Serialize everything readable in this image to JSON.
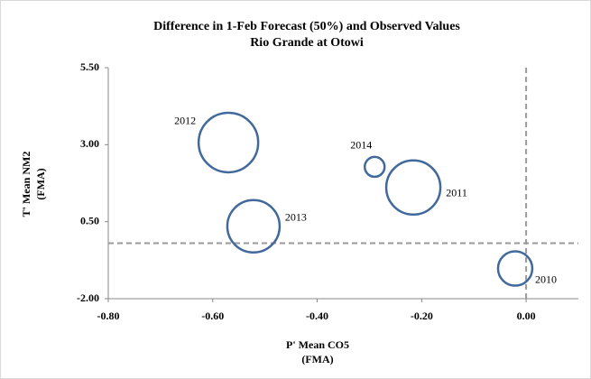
{
  "chart_data": {
    "type": "bubble",
    "title": "Difference in 1-Feb Forecast (50%) and Observed Values",
    "subtitle": "Rio Grande at Otowi",
    "x_label": "P' Mean CO5",
    "x_label_sub": "(FMA)",
    "y_label": "T' Mean NM2",
    "y_label_sub": "(FMA)",
    "labels": [
      "2012",
      "2014",
      "2011",
      "2013",
      "2010"
    ],
    "x": [
      -0.57,
      -0.29,
      -0.216,
      -0.522,
      -0.021
    ],
    "values": [
      3.07,
      2.28,
      1.61,
      0.35,
      -1.02
    ],
    "sizes": [
      33,
      11,
      30,
      29,
      19
    ],
    "color": "#41699b",
    "xlim": [
      -0.8,
      0.1
    ],
    "xticks": [
      {
        "value": -0.8,
        "label": "-0.80"
      },
      {
        "value": -0.6,
        "label": "-0.60"
      },
      {
        "value": -0.4,
        "label": "-0.40"
      },
      {
        "value": -0.2,
        "label": "-0.20"
      },
      {
        "value": 0,
        "label": "0.00"
      }
    ],
    "ylim": [
      -2,
      5.5
    ],
    "yticks": [
      {
        "value": -2,
        "label": "-2.00"
      },
      {
        "value": 0.5,
        "label": "0.50"
      },
      {
        "value": 3,
        "label": "3.00"
      },
      {
        "value": 5.5,
        "label": "5.50"
      }
    ],
    "ref_x": 0,
    "ref_y": -0.2,
    "grid": false
  }
}
